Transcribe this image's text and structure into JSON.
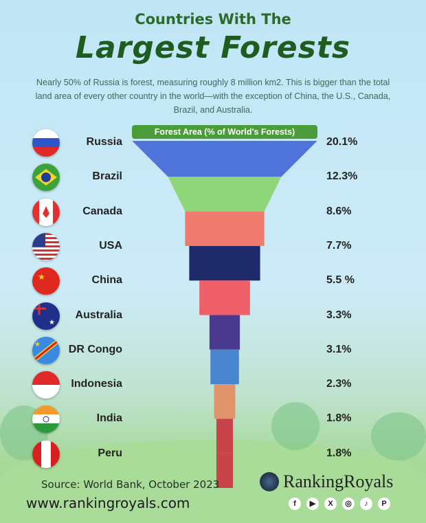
{
  "header": {
    "title_line1": "Countries With The",
    "title_line2": "Largest Forests",
    "description": "Nearly 50% of Russia is forest, measuring roughly 8 million km2. This is bigger than the total land area of every other country in the world—with the exception of China, the U.S., Canada, Brazil, and Australia."
  },
  "chart_data": {
    "type": "bar",
    "subtype": "funnel",
    "title": "Forest Area (% of World's Forests)",
    "categories": [
      "Russia",
      "Brazil",
      "Canada",
      "USA",
      "China",
      "Australia",
      "DR Congo",
      "Indonesia",
      "India",
      "Peru"
    ],
    "values": [
      20.1,
      12.3,
      8.6,
      7.7,
      5.5,
      3.3,
      3.1,
      2.3,
      1.8,
      1.8
    ],
    "labels": [
      "20.1%",
      "12.3%",
      "8.6%",
      "7.7%",
      "5.5 %",
      "3.3%",
      "3.1%",
      "2.3%",
      "1.8%",
      "1.8%"
    ],
    "colors": [
      "#4f74d9",
      "#8fd67a",
      "#f07a6e",
      "#1f2a6b",
      "#f0606a",
      "#4a3a8f",
      "#4a86d0",
      "#e0946a",
      "#c8444a",
      "#c8444a"
    ],
    "flags": [
      "russia-flag",
      "brazil-flag",
      "canada-flag",
      "usa-flag",
      "china-flag",
      "australia-flag",
      "dr-congo-flag",
      "indonesia-flag",
      "india-flag",
      "peru-flag"
    ]
  },
  "footer": {
    "source": "Source: World Bank, October 2023",
    "url": "www.rankingroyals.com",
    "brand": "RankingRoyals",
    "social": [
      {
        "icon": "facebook-icon",
        "glyph": "f"
      },
      {
        "icon": "youtube-icon",
        "glyph": "▶"
      },
      {
        "icon": "x-icon",
        "glyph": "X"
      },
      {
        "icon": "instagram-icon",
        "glyph": "◎"
      },
      {
        "icon": "tiktok-icon",
        "glyph": "♪"
      },
      {
        "icon": "pinterest-icon",
        "glyph": "P"
      }
    ]
  }
}
